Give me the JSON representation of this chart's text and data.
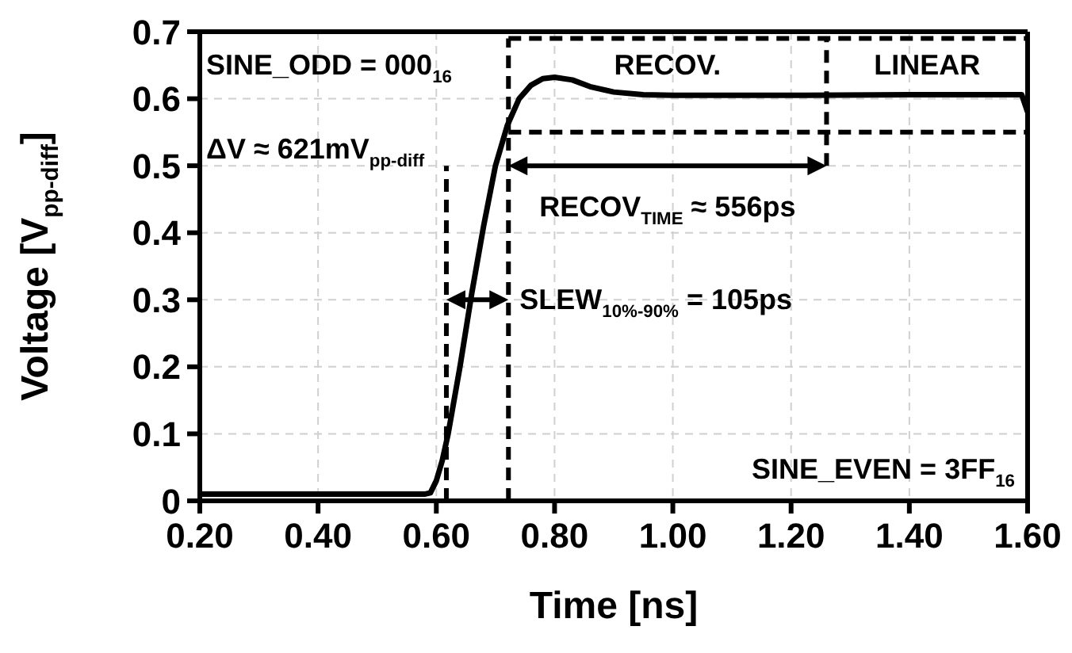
{
  "chart_data": {
    "type": "line",
    "xlabel": "Time [ns]",
    "ylabel": "Voltage [V$_{pp-diff}$]",
    "x": [
      0.2,
      0.58,
      0.59,
      0.6,
      0.61,
      0.62,
      0.64,
      0.66,
      0.68,
      0.7,
      0.72,
      0.74,
      0.76,
      0.78,
      0.8,
      0.83,
      0.86,
      0.9,
      0.95,
      1.0,
      1.2,
      1.4,
      1.59,
      1.6
    ],
    "series": [
      {
        "color": "#000000",
        "values": [
          0.01,
          0.01,
          0.012,
          0.03,
          0.06,
          0.1,
          0.2,
          0.31,
          0.41,
          0.5,
          0.56,
          0.6,
          0.62,
          0.63,
          0.632,
          0.628,
          0.618,
          0.61,
          0.606,
          0.605,
          0.605,
          0.606,
          0.606,
          0.58
        ]
      }
    ],
    "xlim": [
      0.2,
      1.6
    ],
    "ylim": [
      0,
      0.7
    ],
    "xticks": [
      {
        "value": 0.2,
        "label": "0.20"
      },
      {
        "value": 0.4,
        "label": "0.40"
      },
      {
        "value": 0.6,
        "label": "0.60"
      },
      {
        "value": 0.8,
        "label": "0.80"
      },
      {
        "value": 1.0,
        "label": "1.00"
      },
      {
        "value": 1.2,
        "label": "1.20"
      },
      {
        "value": 1.4,
        "label": "1.40"
      },
      {
        "value": 1.6,
        "label": "1.60"
      }
    ],
    "yticks": [
      0,
      0.1,
      0.2,
      0.3,
      0.4,
      0.5,
      0.6,
      0.7
    ],
    "grid": true,
    "marker": "none",
    "line_style": "solid",
    "ref_lines": [
      {
        "axis": "x",
        "value": 0.617,
        "line_style": "dashed",
        "color": "#000000"
      },
      {
        "axis": "x",
        "value": 0.722,
        "line_style": "dashed",
        "color": "#000000"
      },
      {
        "axis": "x",
        "value": 1.26,
        "line_style": "dashed",
        "color": "#000000"
      },
      {
        "axis": "y",
        "value": 0.55,
        "line_style": "dashed",
        "color": "#000000"
      },
      {
        "axis": "y",
        "value": 0.69,
        "line_style": "dashed",
        "color": "#000000"
      }
    ],
    "annotations": [
      "SINE_ODD = 000$_{16}$",
      "ΔV ≈ 621mV$_{pp-diff}$",
      "RECOV.",
      "LINEAR",
      "SINE_EVEN = 3FF$_{16}$",
      {
        "text": "SLEW$_{10%-90%}$ = 105ps",
        "x": 0.73,
        "y": 0.3
      },
      {
        "text": "RECOV$_{TIME}$ ≈ 556ps",
        "x": 1.26,
        "y": 0.5
      }
    ]
  }
}
